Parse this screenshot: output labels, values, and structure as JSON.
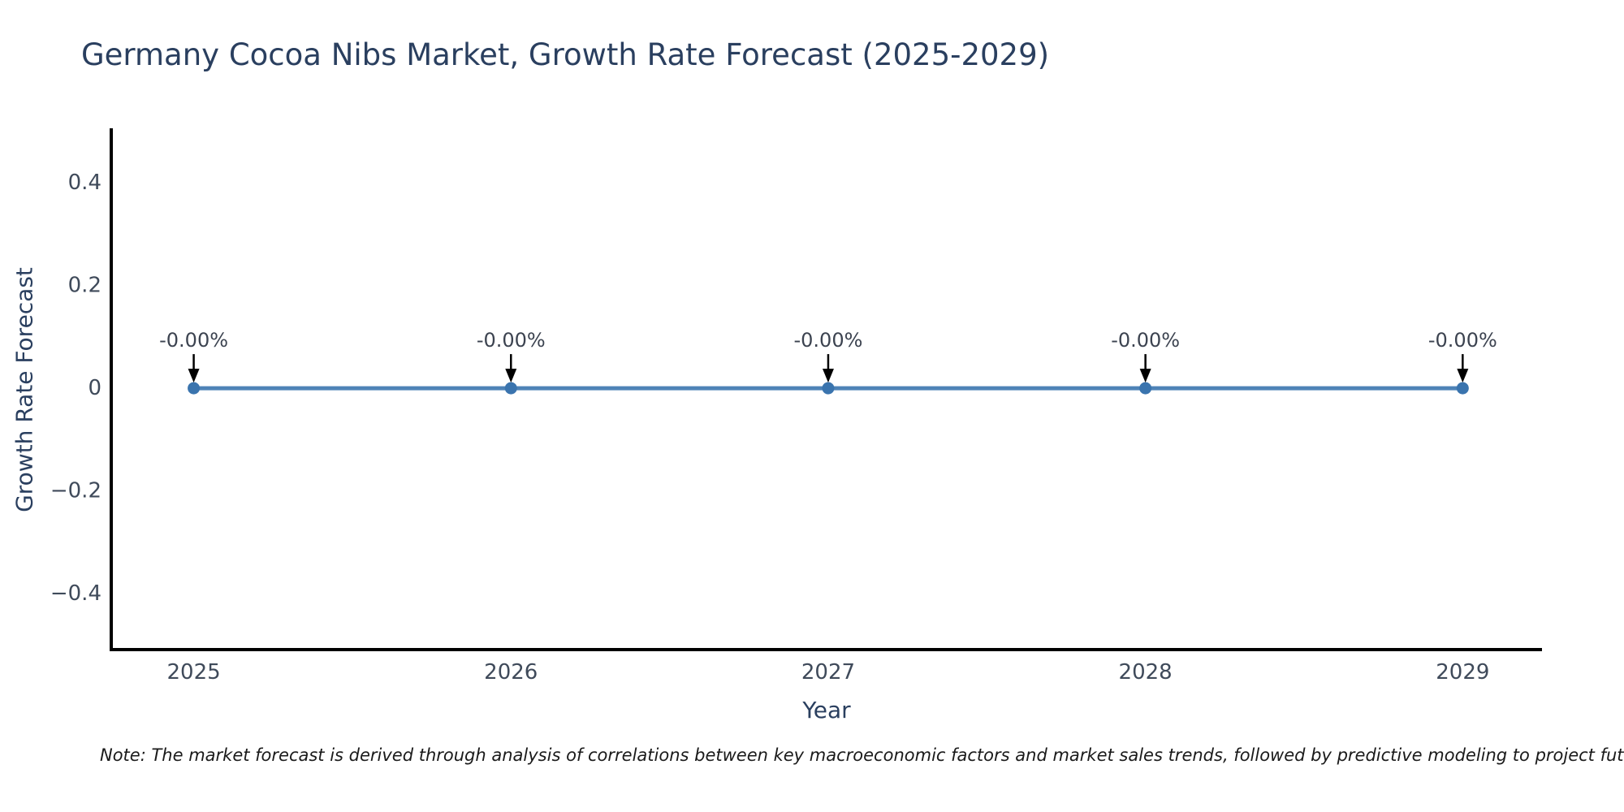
{
  "page": {
    "background": "#ffffff"
  },
  "header": {
    "title": "Germany Cocoa Nibs Market, Growth Rate Forecast (2025-2029)"
  },
  "note": {
    "text": "Note: The market forecast is derived through analysis of correlations between key macroeconomic factors and market sales trends, followed by predictive modeling to project future sales."
  },
  "chart_data": {
    "type": "line",
    "title": "Germany Cocoa Nibs Market, Growth Rate Forecast (2025-2029)",
    "xlabel": "Year",
    "ylabel": "Growth Rate Forecast",
    "categories": [
      2025,
      2026,
      2027,
      2028,
      2029
    ],
    "series": [
      {
        "name": "Growth Rate Forecast",
        "values": [
          0,
          0,
          0,
          0,
          0
        ],
        "point_labels": [
          "-0.00%",
          "-0.00%",
          "-0.00%",
          "-0.00%",
          "-0.00%"
        ]
      }
    ],
    "yticks": [
      0.4,
      0.2,
      0,
      -0.2,
      -0.4
    ],
    "ytick_labels": [
      "0.4",
      "0.2",
      "0",
      "−0.2",
      "−0.4"
    ],
    "xtick_labels": [
      "2025",
      "2026",
      "2027",
      "2028",
      "2029"
    ],
    "xlim": [
      2024.74,
      2029.25
    ],
    "ylim": [
      -0.509,
      0.503
    ],
    "grid": false,
    "legend": "none",
    "annotation_arrows": true,
    "colors": {
      "line": "#4e83b7",
      "marker": "#3a74ae",
      "axis": "#000000",
      "tick_text": "#3f4a5a",
      "axis_title_text": "#2a3f5f",
      "title_text": "#2a3f5f",
      "annotation_text": "#3c4350",
      "arrow": "#000000",
      "background": "#ffffff"
    }
  }
}
